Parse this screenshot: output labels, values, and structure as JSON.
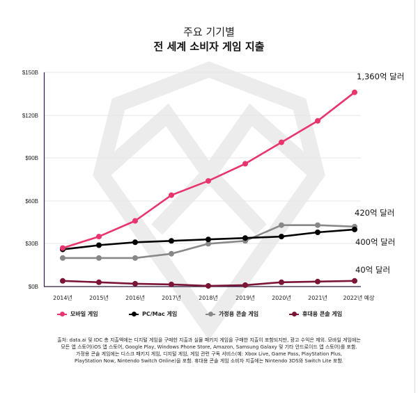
{
  "title": {
    "line1": "주요 기기별",
    "line2": "전 세계 소비자 게임 지출"
  },
  "y_axis": {
    "ticks": [
      "$0B",
      "$30B",
      "$60B",
      "$90B",
      "$120B",
      "$150B"
    ]
  },
  "x_axis": {
    "ticks": [
      "2014년",
      "2015년",
      "2016년",
      "2017년",
      "2018년",
      "2019년",
      "2020년",
      "2021년",
      "2022년 예상"
    ]
  },
  "end_labels": {
    "mobile": "1,360억 달러",
    "console": "420억 달러",
    "pc": "400억 달러",
    "handheld": "40억 달러"
  },
  "legend": {
    "items": [
      {
        "label": "모바일 게임",
        "color": "#e8356d"
      },
      {
        "label": "PC/Mac 게임",
        "color": "#000000"
      },
      {
        "label": "가정용 콘솔 게임",
        "color": "#888888"
      },
      {
        "label": "휴대용 콘솔 게임",
        "color": "#7a1535"
      }
    ]
  },
  "footnote": {
    "lines": [
      "출처: data.ai 및 IDC 총 지출액에는 디지털 게임을 구매한 지출과 실물 패키지 게임을 구매한 지출이 포함되지만, 광고 수익은 제외. 모바일 게임에는",
      "모든 앱 스토어(iOS 앱 스토어, Google Play, Windows Phone Store, Amazon, Samsung Galaxy 및 기타 안드로이드 앱 스토어)를 포함.",
      "가정용 콘솔 게임에는 디스크 패키지 게임, 디지털 게임, 게임 관련 구독 서비스(예: Xbox Live, Game Pass, PlayStation Plus,",
      "PlayStation Now, Nintendo Switch Online)을 포함. 휴대용 콘솔 게임 소비자 지출에는 Nintendo 3DS와 Switch Lite 포함."
    ]
  },
  "chart_data": {
    "type": "line",
    "title": "주요 기기별 전 세계 소비자 게임 지출",
    "xlabel": "",
    "ylabel": "",
    "ylim": [
      0,
      150
    ],
    "grid": true,
    "legend_position": "bottom",
    "categories": [
      "2014년",
      "2015년",
      "2016년",
      "2017년",
      "2018년",
      "2019년",
      "2020년",
      "2021년",
      "2022년 예상"
    ],
    "y_tick_labels": [
      "$0B",
      "$30B",
      "$60B",
      "$90B",
      "$120B",
      "$150B"
    ],
    "series": [
      {
        "name": "모바일 게임",
        "color": "#e8356d",
        "values": [
          27,
          35,
          46,
          64,
          74,
          86,
          101,
          116,
          136
        ]
      },
      {
        "name": "PC/Mac 게임",
        "color": "#000000",
        "values": [
          26,
          29,
          31,
          32,
          33,
          34,
          35,
          38,
          40
        ]
      },
      {
        "name": "가정용 콘솔 게임",
        "color": "#888888",
        "values": [
          20,
          20,
          20,
          23,
          30,
          32,
          43,
          43,
          42
        ]
      },
      {
        "name": "휴대용 콘솔 게임",
        "color": "#7a1535",
        "values": [
          4,
          3,
          2,
          1.5,
          0.5,
          1,
          3,
          3.5,
          4
        ]
      }
    ],
    "annotations": [
      "1,360억 달러",
      "420억 달러",
      "400억 달러",
      "40억 달러"
    ]
  }
}
